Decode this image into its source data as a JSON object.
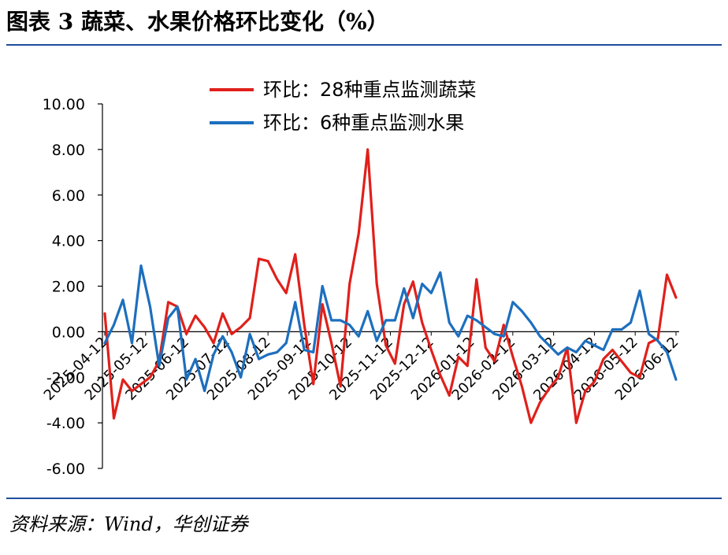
{
  "header": {
    "title": "图表 3  蔬菜、水果价格环比变化（%）"
  },
  "footer": {
    "source": "资料来源：Wind，华创证券"
  },
  "colors": {
    "rule": "#1F4E9E",
    "vegetables": "#E0201B",
    "fruit": "#1D6FBE",
    "axis": "#000000"
  },
  "chart_data": {
    "type": "line",
    "legend_position": "top-center",
    "grid": false,
    "ylim": [
      -6,
      10
    ],
    "yticks": [
      "10.00",
      "8.00",
      "6.00",
      "4.00",
      "2.00",
      "0.00",
      "-2.00",
      "-4.00",
      "-6.00"
    ],
    "xtick_labels": [
      "2025-04-12",
      "2025-05-12",
      "2025-06-12",
      "2025-07-12",
      "2025-08-12",
      "2025-09-12",
      "2025-10-12",
      "2025-11-12",
      "2025-12-12",
      "2026-01-12",
      "2026-02-12",
      "2026-03-12",
      "2026-04-12",
      "2026-05-12",
      "2026-06-12"
    ],
    "series": [
      {
        "name": "环比：28种重点监测蔬菜",
        "color": "#E0201B",
        "values": [
          0.8,
          -3.8,
          -2.1,
          -2.6,
          -2.3,
          -2.0,
          -1.3,
          1.3,
          1.1,
          -0.1,
          0.7,
          0.2,
          -0.5,
          0.8,
          -0.1,
          0.2,
          0.6,
          3.2,
          3.1,
          2.3,
          1.7,
          3.4,
          0.3,
          -2.3,
          1.2,
          -0.5,
          -2.4,
          2.1,
          4.3,
          8.0,
          2.1,
          -0.6,
          -1.4,
          1.2,
          2.2,
          0.4,
          -0.8,
          -1.9,
          -2.8,
          -1.1,
          -1.5,
          2.3,
          -0.7,
          -1.3,
          0.3,
          -1.1,
          -2.4,
          -4.0,
          -3.1,
          -2.5,
          -2.0,
          -0.7,
          -4.0,
          -2.6,
          -2.2,
          -1.2,
          -0.8,
          -1.3,
          -1.8,
          -2.0,
          -0.5,
          -0.3,
          2.5,
          1.5
        ]
      },
      {
        "name": "环比：6种重点监测水果",
        "color": "#1D6FBE",
        "values": [
          -0.5,
          0.3,
          1.4,
          -0.5,
          2.9,
          1.1,
          -1.5,
          0.6,
          1.1,
          -2.1,
          -1.2,
          -2.6,
          -1.0,
          -0.2,
          -0.9,
          -2.0,
          -0.1,
          -1.2,
          -1.0,
          -0.9,
          -0.5,
          1.3,
          -0.8,
          -0.9,
          2.0,
          0.5,
          0.5,
          0.3,
          -0.2,
          0.9,
          -0.4,
          0.5,
          0.5,
          1.9,
          0.6,
          2.1,
          1.7,
          2.6,
          0.4,
          -0.2,
          0.7,
          0.5,
          0.2,
          -0.1,
          -0.2,
          1.3,
          0.9,
          0.4,
          -0.2,
          -0.6,
          -1.0,
          -0.7,
          -0.9,
          -0.4,
          -0.6,
          -0.8,
          0.1,
          0.1,
          0.4,
          1.8,
          -0.1,
          -0.4,
          -0.9,
          -2.1
        ]
      }
    ]
  }
}
